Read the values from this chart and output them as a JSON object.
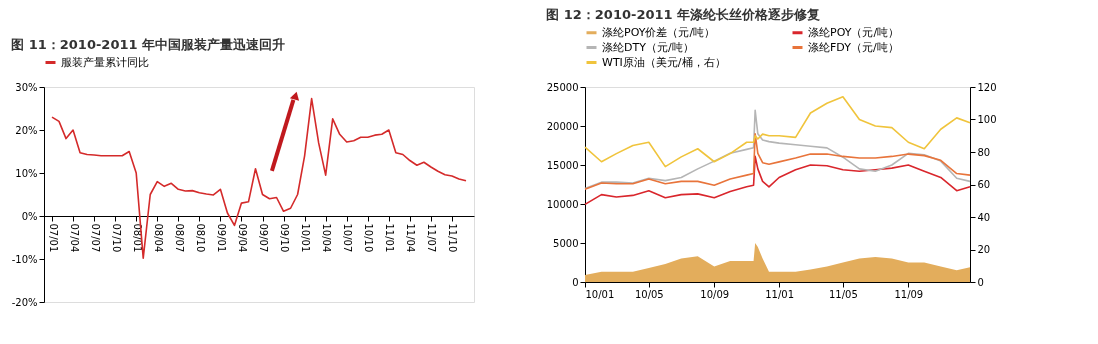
{
  "chart_data": [
    {
      "type": "line",
      "title": "图 11：2010-2011 年中国服装产量迅速回升",
      "categories": [
        "07/01",
        null,
        null,
        "07/04",
        null,
        null,
        "07/07",
        null,
        null,
        "07/10",
        null,
        null,
        "08/01",
        null,
        null,
        "08/04",
        null,
        null,
        "08/07",
        null,
        null,
        "08/10",
        null,
        null,
        "09/01",
        null,
        null,
        "09/04",
        null,
        null,
        "09/07",
        null,
        null,
        "09/10",
        null,
        null,
        "10/01",
        null,
        null,
        "10/04",
        null,
        null,
        "10/07",
        null,
        null,
        "10/10",
        null,
        null,
        "11/01",
        null,
        null,
        "11/04",
        null,
        null,
        "11/07",
        null,
        null,
        "11/10",
        null,
        null
      ],
      "series": [
        {
          "name": "服装产量累计同比",
          "color": "#d42a2a",
          "values": [
            23,
            22,
            18,
            20,
            14.7,
            14.3,
            14.2,
            14,
            14,
            14,
            14,
            15,
            10,
            -9.8,
            5,
            8,
            6.9,
            7.6,
            6.2,
            5.8,
            5.9,
            5.4,
            5.1,
            4.9,
            6.2,
            0.7,
            -2.2,
            3,
            3.3,
            11,
            5,
            4,
            4.3,
            1.1,
            1.8,
            5,
            14,
            27.3,
            17,
            9.5,
            22.6,
            19,
            17.2,
            17.5,
            18.3,
            18.3,
            18.8,
            19,
            20,
            14.7,
            14.3,
            12.9,
            11.8,
            12.5,
            11.4,
            10.4,
            9.6,
            9.3,
            8.6,
            8.2
          ]
        }
      ],
      "ylim": [
        -20,
        30
      ],
      "yticks": [
        {
          "value": -20,
          "label": "-20%"
        },
        {
          "value": -10,
          "label": "-10%"
        },
        {
          "value": 0,
          "label": "0%"
        },
        {
          "value": 10,
          "label": "10%"
        },
        {
          "value": 20,
          "label": "20%"
        },
        {
          "value": 30,
          "label": "30%"
        }
      ],
      "legend": "top",
      "grid": false
    },
    {
      "type": "line",
      "title": "图 12：2010-2011 年涤纶长丝价格逐步修复",
      "x": [
        "2010-01-01",
        "2010-02-01",
        "2010-03-01",
        "2010-04-01",
        "2010-05-01",
        "2010-06-01",
        "2010-07-01",
        "2010-08-01",
        "2010-09-01",
        "2010-10-01",
        "2010-11-01",
        "2010-11-14",
        "2010-11-17",
        "2010-11-22",
        "2010-12-01",
        "2010-12-13",
        "2011-01-01",
        "2011-02-01",
        "2011-03-01",
        "2011-04-01",
        "2011-05-01",
        "2011-06-01",
        "2011-07-01",
        "2011-08-01",
        "2011-09-01",
        "2011-10-01",
        "2011-11-01",
        "2011-12-01",
        "2011-12-26"
      ],
      "series": [
        {
          "name": "涤纶POY价差（元/吨）",
          "type": "area",
          "color": "#e3ad5c",
          "values": [
            900,
            1300,
            1300,
            1300,
            1800,
            2300,
            3000,
            3300,
            2000,
            2700,
            2700,
            2700,
            5000,
            4500,
            3000,
            1300,
            1300,
            1300,
            1600,
            2000,
            2500,
            3000,
            3200,
            3000,
            2500,
            2500,
            2000,
            1500,
            1900
          ]
        },
        {
          "name": "涤纶POY（元/吨）",
          "color": "#d9262c",
          "values": [
            9950,
            11200,
            10900,
            11100,
            11700,
            10800,
            11200,
            11300,
            10800,
            11600,
            12200,
            12400,
            16100,
            14500,
            12900,
            12200,
            13400,
            14400,
            15000,
            14900,
            14400,
            14200,
            14400,
            14600,
            15000,
            14200,
            13400,
            11700,
            12200
          ]
        },
        {
          "name": "涤纶DTY（元/吨）",
          "color": "#b5b5b5",
          "values": [
            12000,
            12800,
            12800,
            12700,
            13300,
            13000,
            13400,
            14500,
            15500,
            16500,
            17000,
            17200,
            22000,
            19000,
            18200,
            18000,
            17800,
            17600,
            17400,
            17200,
            16000,
            14500,
            14200,
            15000,
            16500,
            16300,
            15500,
            13300,
            12900
          ]
        },
        {
          "name": "涤纶FDY（元/吨）",
          "color": "#e8743b",
          "values": [
            11900,
            12700,
            12600,
            12600,
            13200,
            12600,
            12900,
            12900,
            12400,
            13200,
            13700,
            13900,
            19000,
            16500,
            15300,
            15100,
            15400,
            15900,
            16400,
            16400,
            16100,
            15900,
            15900,
            16100,
            16400,
            16200,
            15600,
            13900,
            13700
          ]
        },
        {
          "name": "WTI原油（美元/桶，右）",
          "color": "#f0c43c",
          "axis": "y2",
          "values": [
            83,
            74,
            79,
            84,
            86,
            71,
            77,
            82,
            74,
            79,
            86,
            86,
            90,
            88,
            91,
            90,
            90,
            89,
            104,
            110,
            114,
            100,
            96,
            95,
            86,
            82,
            94,
            101,
            98
          ]
        }
      ],
      "xlim": [
        "2010-01-01",
        "2011-12-26"
      ],
      "xticks": [
        {
          "value": "2010-01-01",
          "label": "10/01"
        },
        {
          "value": "2010-05-01",
          "label": "10/05"
        },
        {
          "value": "2010-09-01",
          "label": "10/09"
        },
        {
          "value": "2011-01-01",
          "label": "11/01"
        },
        {
          "value": "2011-05-01",
          "label": "11/05"
        },
        {
          "value": "2011-09-01",
          "label": "11/09"
        }
      ],
      "ylim": [
        0,
        25000
      ],
      "yticks": [
        0,
        5000,
        10000,
        15000,
        20000,
        25000
      ],
      "y2lim": [
        0,
        120
      ],
      "y2ticks": [
        0,
        20,
        40,
        60,
        80,
        100,
        120
      ],
      "legend": "top",
      "grid": false
    }
  ]
}
